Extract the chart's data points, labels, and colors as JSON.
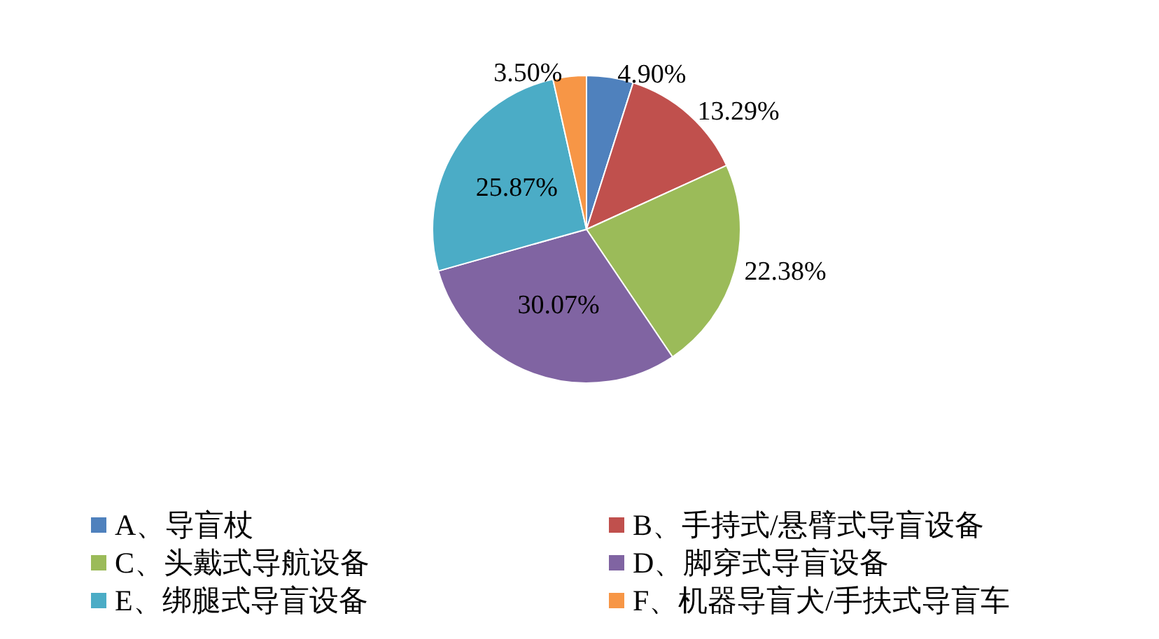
{
  "chart_data": {
    "type": "pie",
    "categories": [
      "A、导盲杖",
      "B、手持式/悬臂式导盲设备",
      "C、头戴式导航设备",
      "D、脚穿式导盲设备",
      "E、绑腿式导盲设备",
      "F、机器导盲犬/手扶式导盲车"
    ],
    "values": [
      4.9,
      13.29,
      22.38,
      30.07,
      25.87,
      3.5
    ],
    "value_labels": [
      "4.90%",
      "13.29%",
      "22.38%",
      "30.07%",
      "25.87%",
      "3.50%"
    ],
    "colors": [
      "#4f81bd",
      "#c0504d",
      "#9bbb59",
      "#8064a2",
      "#4bacc6",
      "#f79646"
    ],
    "legend": "bottom"
  }
}
